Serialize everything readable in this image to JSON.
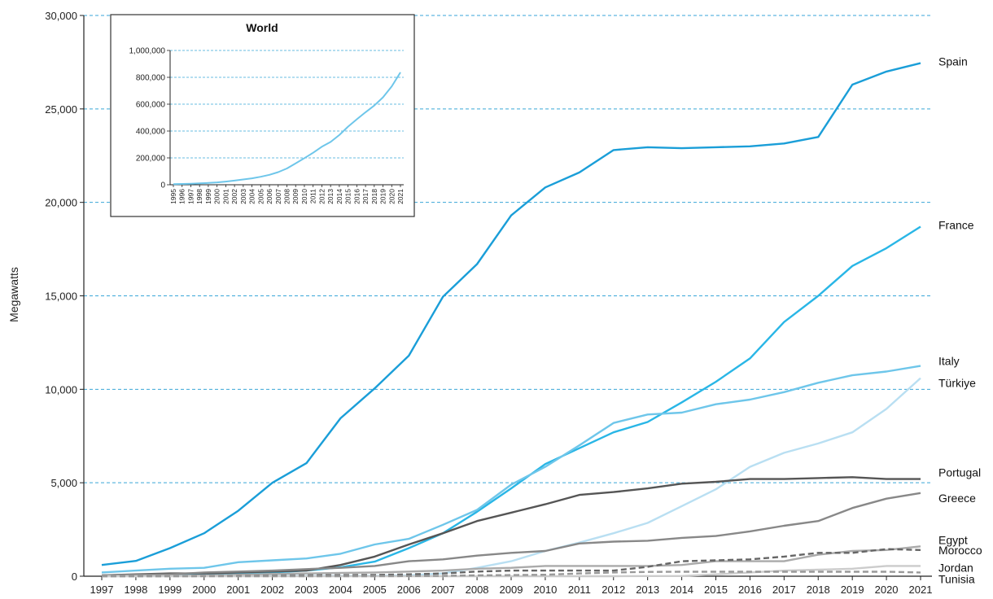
{
  "chart_data": [
    {
      "type": "line",
      "title": "",
      "xlabel": "",
      "ylabel": "Megawatts",
      "x": [
        "1997",
        "1998",
        "1999",
        "2000",
        "2001",
        "2002",
        "2003",
        "2004",
        "2005",
        "2006",
        "2007",
        "2008",
        "2009",
        "2010",
        "2011",
        "2012",
        "2013",
        "2014",
        "2015",
        "2016",
        "2017",
        "2018",
        "2019",
        "2020",
        "2021"
      ],
      "ylim": [
        0,
        30000
      ],
      "yticks": [
        "0",
        "5,000",
        "10,000",
        "15,000",
        "20,000",
        "25,000",
        "30,000"
      ],
      "grid": "horizontal dashed",
      "legend": "direct labels at right end of lines",
      "series": [
        {
          "name": "Spain",
          "color": "#1a9ed8",
          "dash": false,
          "values": [
            600,
            820,
            1500,
            2300,
            3500,
            5000,
            6050,
            8450,
            10050,
            11800,
            14950,
            16700,
            19300,
            20800,
            21600,
            22800,
            22950,
            22900,
            22950,
            23000,
            23150,
            23500,
            26300,
            27000,
            27450
          ]
        },
        {
          "name": "France",
          "color": "#29b6e6",
          "dash": false,
          "values": [
            20,
            30,
            50,
            80,
            120,
            200,
            300,
            480,
            780,
            1500,
            2300,
            3450,
            4700,
            6000,
            6850,
            7700,
            8250,
            9300,
            10400,
            11650,
            13600,
            15000,
            16600,
            17550,
            18700
          ]
        },
        {
          "name": "Italy",
          "color": "#6ec6ea",
          "dash": false,
          "values": [
            200,
            300,
            400,
            450,
            750,
            850,
            950,
            1200,
            1700,
            2000,
            2750,
            3550,
            4900,
            5850,
            7000,
            8200,
            8650,
            8750,
            9200,
            9450,
            9850,
            10350,
            10750,
            10950,
            11250
          ]
        },
        {
          "name": "Türkiye",
          "color": "#b9dff2",
          "dash": false,
          "values": [
            10,
            10,
            10,
            20,
            20,
            20,
            20,
            20,
            20,
            50,
            150,
            450,
            800,
            1350,
            1800,
            2300,
            2850,
            3750,
            4650,
            5850,
            6600,
            7100,
            7700,
            8950,
            10600
          ]
        },
        {
          "name": "Portugal",
          "color": "#555555",
          "dash": false,
          "values": [
            50,
            100,
            150,
            150,
            200,
            250,
            300,
            600,
            1050,
            1700,
            2300,
            2950,
            3400,
            3850,
            4350,
            4500,
            4700,
            4950,
            5050,
            5200,
            5200,
            5250,
            5300,
            5200,
            5200
          ]
        },
        {
          "name": "Greece",
          "color": "#888888",
          "dash": false,
          "values": [
            50,
            80,
            100,
            200,
            250,
            300,
            380,
            450,
            550,
            800,
            900,
            1100,
            1250,
            1350,
            1750,
            1850,
            1900,
            2050,
            2150,
            2400,
            2700,
            2950,
            3650,
            4150,
            4450
          ]
        },
        {
          "name": "Egypt",
          "color": "#aaaaaa",
          "dash": false,
          "values": [
            5,
            10,
            20,
            40,
            80,
            120,
            150,
            180,
            200,
            250,
            300,
            400,
            450,
            550,
            550,
            550,
            550,
            600,
            800,
            800,
            800,
            1150,
            1350,
            1400,
            1600
          ]
        },
        {
          "name": "Morocco",
          "color": "#666666",
          "dash": true,
          "values": [
            0,
            0,
            0,
            10,
            20,
            30,
            50,
            60,
            70,
            100,
            150,
            250,
            300,
            300,
            300,
            300,
            500,
            800,
            850,
            900,
            1050,
            1250,
            1250,
            1450,
            1400
          ]
        },
        {
          "name": "Jordan",
          "color": "#cccccc",
          "dash": false,
          "values": [
            0,
            0,
            0,
            0,
            0,
            0,
            0,
            0,
            0,
            0,
            0,
            0,
            0,
            0,
            0,
            0,
            10,
            10,
            100,
            200,
            300,
            350,
            400,
            550,
            550
          ]
        },
        {
          "name": "Tunisia",
          "color": "#999999",
          "dash": true,
          "values": [
            0,
            0,
            0,
            0,
            0,
            0,
            0,
            0,
            0,
            10,
            20,
            50,
            60,
            80,
            150,
            200,
            230,
            240,
            240,
            240,
            240,
            240,
            240,
            240,
            200
          ]
        }
      ]
    },
    {
      "type": "line",
      "title": "World",
      "x": [
        "1995",
        "1996",
        "1997",
        "1998",
        "1999",
        "2000",
        "2001",
        "2002",
        "2003",
        "2004",
        "2005",
        "2006",
        "2007",
        "2008",
        "2009",
        "2010",
        "2011",
        "2012",
        "2013",
        "2014",
        "2015",
        "2016",
        "2017",
        "2018",
        "2019",
        "2020",
        "2021"
      ],
      "ylim": [
        0,
        1000000
      ],
      "yticks": [
        "0",
        "200,000",
        "400,000",
        "600,000",
        "800,000",
        "1,000,000"
      ],
      "grid": "horizontal dashed",
      "series": [
        {
          "name": "",
          "color": "#6ec6ea",
          "values": [
            4800,
            6100,
            7600,
            10200,
            13600,
            17400,
            23900,
            31100,
            39400,
            47600,
            59100,
            74000,
            93900,
            121000,
            159000,
            198000,
            238000,
            283000,
            319000,
            370000,
            433000,
            487000,
            540000,
            590000,
            651000,
            733000,
            837000
          ]
        }
      ]
    }
  ]
}
